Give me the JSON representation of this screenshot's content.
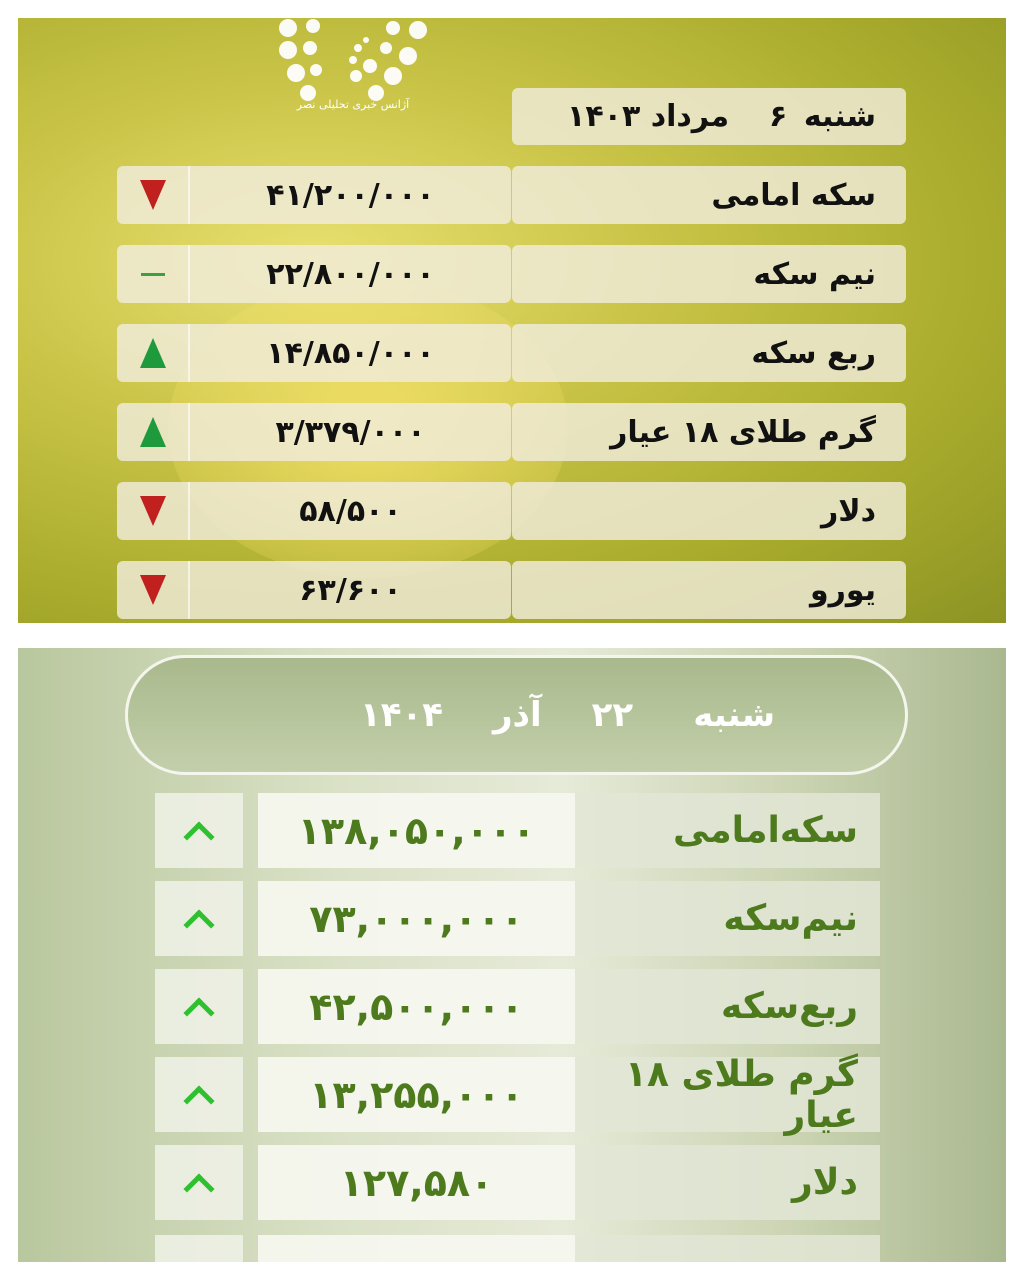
{
  "top_board": {
    "logo_text": "آژانس خبری تحلیلی نصر",
    "date": {
      "weekday": "شنبه",
      "day": "۶",
      "month": "مرداد",
      "year": "۱۴۰۳"
    },
    "rows": [
      {
        "label": "سکه امامی",
        "value": "۴۱/۲۰۰/۰۰۰",
        "trend": "down"
      },
      {
        "label": "نیم سکه",
        "value": "۲۲/۸۰۰/۰۰۰",
        "trend": "flat"
      },
      {
        "label": "ربع سکه",
        "value": "۱۴/۸۵۰/۰۰۰",
        "trend": "up"
      },
      {
        "label": "گرم طلای ۱۸ عیار",
        "value": "۳/۳۷۹/۰۰۰",
        "trend": "up"
      },
      {
        "label": "دلار",
        "value": "۵۸/۵۰۰",
        "trend": "down"
      },
      {
        "label": "یورو",
        "value": "۶۳/۶۰۰",
        "trend": "down"
      }
    ]
  },
  "bottom_board": {
    "date": {
      "weekday": "شنبه",
      "day": "۲۲",
      "month": "آذر",
      "year": "۱۴۰۴"
    },
    "rows": [
      {
        "label": "سکه‌امامی",
        "value": "۱۳۸,۰۵۰,۰۰۰",
        "trend": "up"
      },
      {
        "label": "نیم‌سکه",
        "value": "۷۳,۰۰۰,۰۰۰",
        "trend": "up"
      },
      {
        "label": "ربع‌سکه",
        "value": "۴۲,۵۰۰,۰۰۰",
        "trend": "up"
      },
      {
        "label": "گرم طلای ۱۸ عیار",
        "value": "۱۳,۲۵۵,۰۰۰",
        "trend": "up"
      },
      {
        "label": "دلار",
        "value": "۱۲۷,۵۸۰",
        "trend": "up"
      }
    ]
  },
  "colors": {
    "down": "#c0201e",
    "up_top": "#1e9a3c",
    "up_bottom": "#2fc02f",
    "value_bottom": "#4e7a1e"
  }
}
